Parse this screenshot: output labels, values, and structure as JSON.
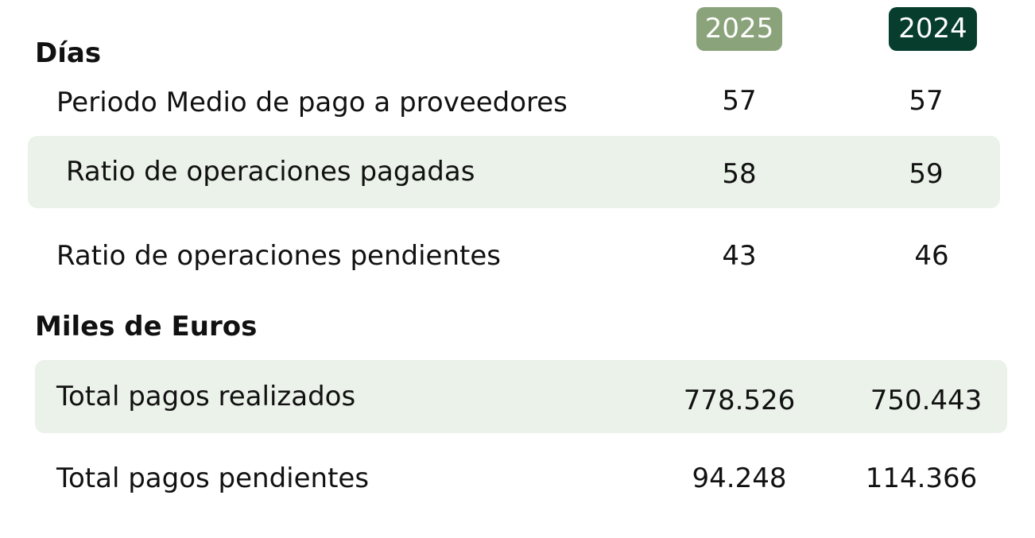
{
  "header": {
    "year_current": "2025",
    "year_previous": "2024"
  },
  "colors": {
    "year_current_bg": "#8aa37a",
    "year_previous_bg": "#063d2c",
    "highlight_row_bg": "#eaf2e9"
  },
  "sections": {
    "dias": {
      "title": "Días",
      "rows": [
        {
          "label": "Periodo Medio de pago a proveedores",
          "v2025": "57",
          "v2024": "57"
        },
        {
          "label": "Ratio de operaciones pagadas",
          "v2025": "58",
          "v2024": "59"
        },
        {
          "label": "Ratio de operaciones pendientes",
          "v2025": "43",
          "v2024": "46"
        }
      ]
    },
    "miles": {
      "title": "Miles de Euros",
      "rows": [
        {
          "label": "Total pagos realizados",
          "v2025": "778.526",
          "v2024": "750.443"
        },
        {
          "label": "Total pagos pendientes",
          "v2025": "94.248",
          "v2024": "114.366"
        }
      ]
    }
  }
}
